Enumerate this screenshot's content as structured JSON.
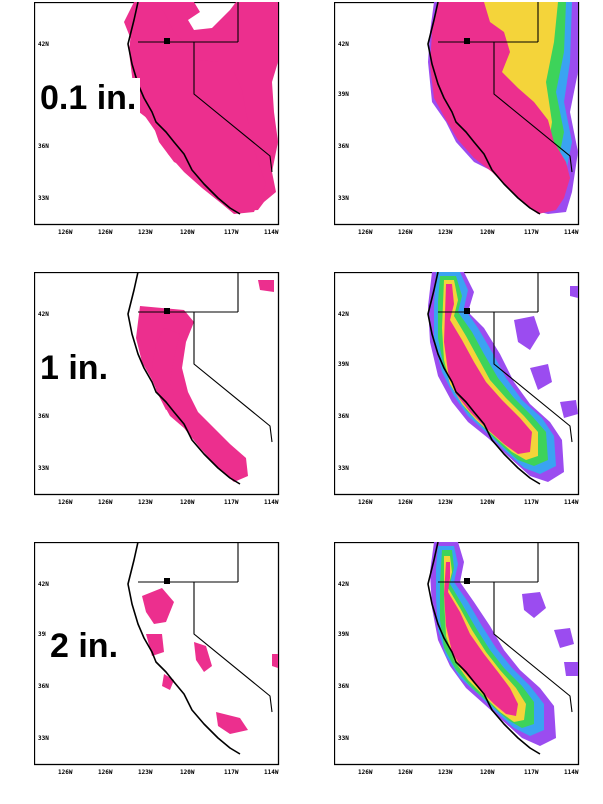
{
  "rows": [
    {
      "threshold_label": "0.1 in."
    },
    {
      "threshold_label": "1 in."
    },
    {
      "threshold_label": "2 in."
    }
  ],
  "axes": {
    "lat_ticks": [
      "42N",
      "39N",
      "36N",
      "33N"
    ],
    "lon_ticks": [
      "126W",
      "126W",
      "123W",
      "120W",
      "117W",
      "114W"
    ]
  },
  "colors": {
    "probability_fill": "#ec2f8e",
    "ensemble_low": "#9b4cf0",
    "ensemble_mid_low": "#3aa3f2",
    "ensemble_mid": "#3dd35a",
    "ensemble_mid_high": "#f4d43a",
    "ensemble_high": "#ec2f8e",
    "outline": "#000000"
  }
}
